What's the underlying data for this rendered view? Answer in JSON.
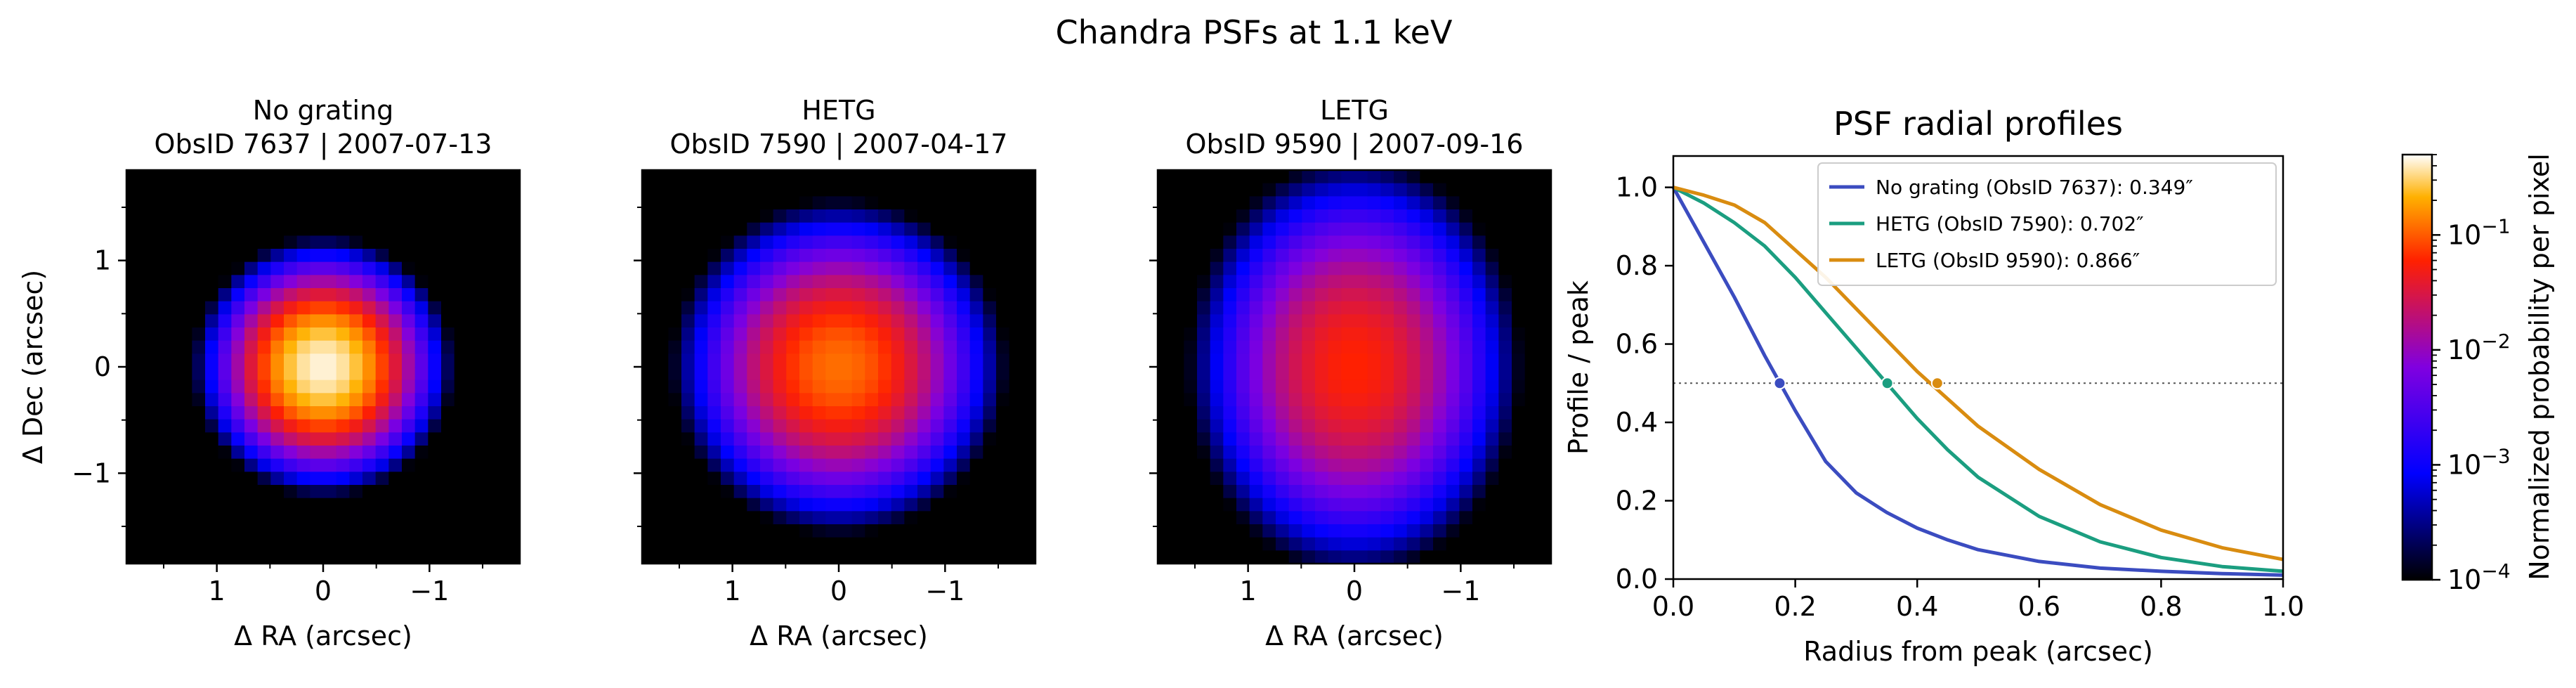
{
  "figure": {
    "suptitle": "Chandra PSFs at 1.1 keV"
  },
  "chart_data": [
    {
      "type": "heatmap",
      "title_line1": "No grating",
      "title_line2": "ObsID 7637  |  2007-07-13",
      "xlabel": "Δ RA (arcsec)",
      "ylabel": "Δ Dec (arcsec)",
      "xticks": [
        "1",
        "0",
        "−1"
      ],
      "yticks": [
        "1",
        "0",
        "−1"
      ],
      "xlim": [
        1.85,
        -1.85
      ],
      "ylim": [
        -1.85,
        1.85
      ],
      "grid_size": 30,
      "psf": {
        "peak": 0.45,
        "sigma_x": 0.3,
        "sigma_y": 0.3,
        "tail": 0.0,
        "jitter": 0.0
      }
    },
    {
      "type": "heatmap",
      "title_line1": "HETG",
      "title_line2": "ObsID 7590  |  2007-04-17",
      "xlabel": "Δ RA (arcsec)",
      "ylabel": "",
      "xticks": [
        "1",
        "0",
        "−1"
      ],
      "yticks": [],
      "xlim": [
        1.85,
        -1.85
      ],
      "ylim": [
        -1.85,
        1.85
      ],
      "grid_size": 30,
      "psf": {
        "peak": 0.12,
        "sigma_x": 0.42,
        "sigma_y": 0.42,
        "tail": 0.0,
        "jitter": 0.0
      }
    },
    {
      "type": "heatmap",
      "title_line1": "LETG",
      "title_line2": "ObsID 9590  |  2007-09-16",
      "xlabel": "Δ RA (arcsec)",
      "ylabel": "",
      "xticks": [
        "1",
        "0",
        "−1"
      ],
      "yticks": [],
      "xlim": [
        1.85,
        -1.85
      ],
      "ylim": [
        -1.85,
        1.85
      ],
      "grid_size": 30,
      "psf": {
        "peak": 0.06,
        "sigma_x": 0.44,
        "sigma_y": 0.55,
        "tail": 0.0,
        "jitter": 0.0
      }
    },
    {
      "type": "line",
      "title": "PSF radial profiles",
      "xlabel": "Radius from peak (arcsec)",
      "ylabel": "Profile / peak",
      "xlim": [
        0,
        1.0
      ],
      "ylim": [
        0,
        1.08
      ],
      "xticks": [
        0.0,
        0.2,
        0.4,
        0.6,
        0.8,
        1.0
      ],
      "xtick_labels": [
        "0.0",
        "0.2",
        "0.4",
        "0.6",
        "0.8",
        "1.0"
      ],
      "yticks": [
        0.0,
        0.2,
        0.4,
        0.6,
        0.8,
        1.0
      ],
      "ytick_labels": [
        "0.0",
        "0.2",
        "0.4",
        "0.6",
        "0.8",
        "1.0"
      ],
      "half_max_line": 0.5,
      "legend_position": "top-right",
      "series": [
        {
          "name": "No grating (ObsID 7637): 0.349″",
          "color": "#3b4cc0",
          "x": [
            0.0,
            0.05,
            0.1,
            0.15,
            0.2,
            0.25,
            0.3,
            0.35,
            0.4,
            0.45,
            0.5,
            0.6,
            0.7,
            0.8,
            0.9,
            1.0
          ],
          "y": [
            1.0,
            0.86,
            0.72,
            0.57,
            0.43,
            0.3,
            0.22,
            0.17,
            0.13,
            0.1,
            0.075,
            0.045,
            0.028,
            0.02,
            0.014,
            0.01
          ],
          "half_point": [
            0.1745,
            0.5
          ]
        },
        {
          "name": "HETG (ObsID 7590): 0.702″",
          "color": "#1b9e80",
          "x": [
            0.0,
            0.05,
            0.1,
            0.15,
            0.2,
            0.25,
            0.3,
            0.35,
            0.4,
            0.45,
            0.5,
            0.6,
            0.7,
            0.8,
            0.9,
            1.0
          ],
          "y": [
            1.0,
            0.96,
            0.91,
            0.85,
            0.77,
            0.68,
            0.59,
            0.5,
            0.41,
            0.33,
            0.26,
            0.16,
            0.095,
            0.055,
            0.032,
            0.02
          ],
          "half_point": [
            0.351,
            0.5
          ]
        },
        {
          "name": "LETG (ObsID 9590): 0.866″",
          "color": "#d98c10",
          "x": [
            0.0,
            0.05,
            0.1,
            0.15,
            0.2,
            0.25,
            0.3,
            0.35,
            0.4,
            0.45,
            0.5,
            0.6,
            0.7,
            0.8,
            0.9,
            1.0
          ],
          "y": [
            1.0,
            0.98,
            0.955,
            0.91,
            0.84,
            0.77,
            0.69,
            0.61,
            0.53,
            0.46,
            0.39,
            0.28,
            0.19,
            0.125,
            0.08,
            0.05
          ],
          "half_point": [
            0.433,
            0.5
          ]
        }
      ]
    }
  ],
  "colorbar": {
    "label": "Normalized probability per pixel",
    "scale": "log",
    "vmin": 0.0001,
    "vmax": 0.5,
    "colormap": "gnuplot2",
    "ticks": [
      {
        "value": 0.0001,
        "base": "10",
        "exp": "−4"
      },
      {
        "value": 0.001,
        "base": "10",
        "exp": "−3"
      },
      {
        "value": 0.01,
        "base": "10",
        "exp": "−2"
      },
      {
        "value": 0.1,
        "base": "10",
        "exp": "−1"
      }
    ]
  }
}
